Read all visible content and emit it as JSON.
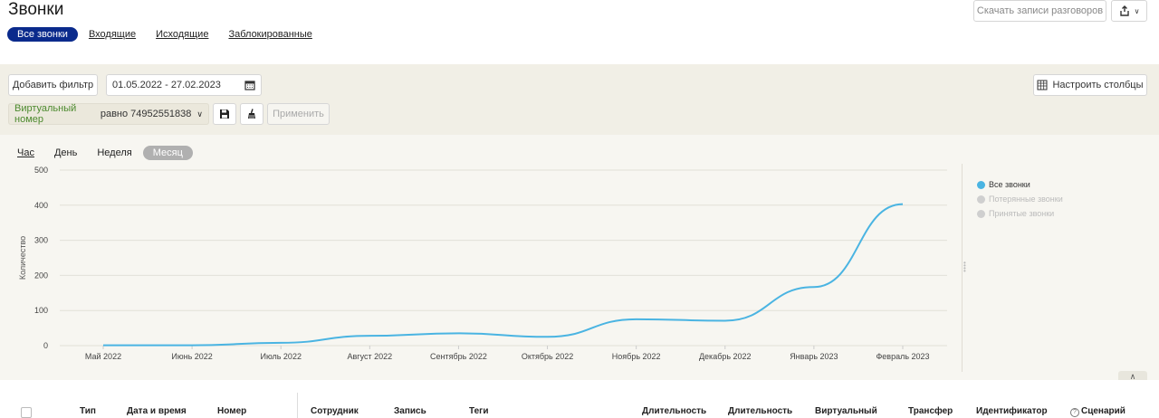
{
  "header": {
    "title": "Звонки",
    "download_label": "Скачать записи разговоров",
    "tabs": [
      {
        "label": "Все звонки",
        "active": true
      },
      {
        "label": "Входящие",
        "active": false
      },
      {
        "label": "Исходящие",
        "active": false
      },
      {
        "label": "Заблокированные",
        "active": false
      }
    ]
  },
  "filters": {
    "add_filter_label": "Добавить фильтр",
    "date_range": "01.05.2022 - 27.02.2023",
    "columns_label": "Настроить столбцы",
    "virtual_number": {
      "field": "Виртуальный номер",
      "operator": "равно",
      "value": "74952551838"
    },
    "apply_label": "Применить"
  },
  "periods": [
    {
      "label": "Час",
      "active": false
    },
    {
      "label": "День",
      "active": false
    },
    {
      "label": "Неделя",
      "active": false
    },
    {
      "label": "Месяц",
      "active": true
    }
  ],
  "chart_data": {
    "type": "line",
    "ylabel": "Количество",
    "ylim": [
      0,
      500
    ],
    "yticks": [
      0,
      100,
      200,
      300,
      400,
      500
    ],
    "categories": [
      "Май 2022",
      "Июнь 2022",
      "Июль 2022",
      "Август 2022",
      "Сентябрь 2022",
      "Октябрь 2022",
      "Ноябрь 2022",
      "Декабрь 2022",
      "Январь 2023",
      "Февраль 2023"
    ],
    "series": [
      {
        "name": "Все звонки",
        "values": [
          1,
          1,
          8,
          28,
          35,
          25,
          75,
          71,
          167,
          403
        ],
        "color": "#4ab4e2",
        "visible": true
      },
      {
        "name": "Потерянные звонки",
        "visible": false
      },
      {
        "name": "Принятые звонки",
        "visible": false
      }
    ],
    "grid": true,
    "legend": "right"
  },
  "table": {
    "columns": [
      "Тип",
      "Дата и время",
      "Номер",
      "Сотрудник",
      "Запись",
      "Теги",
      "Длительность",
      "Длительность",
      "Виртуальный",
      "Трансфер",
      "Идентификатор",
      "Сценарий"
    ]
  }
}
